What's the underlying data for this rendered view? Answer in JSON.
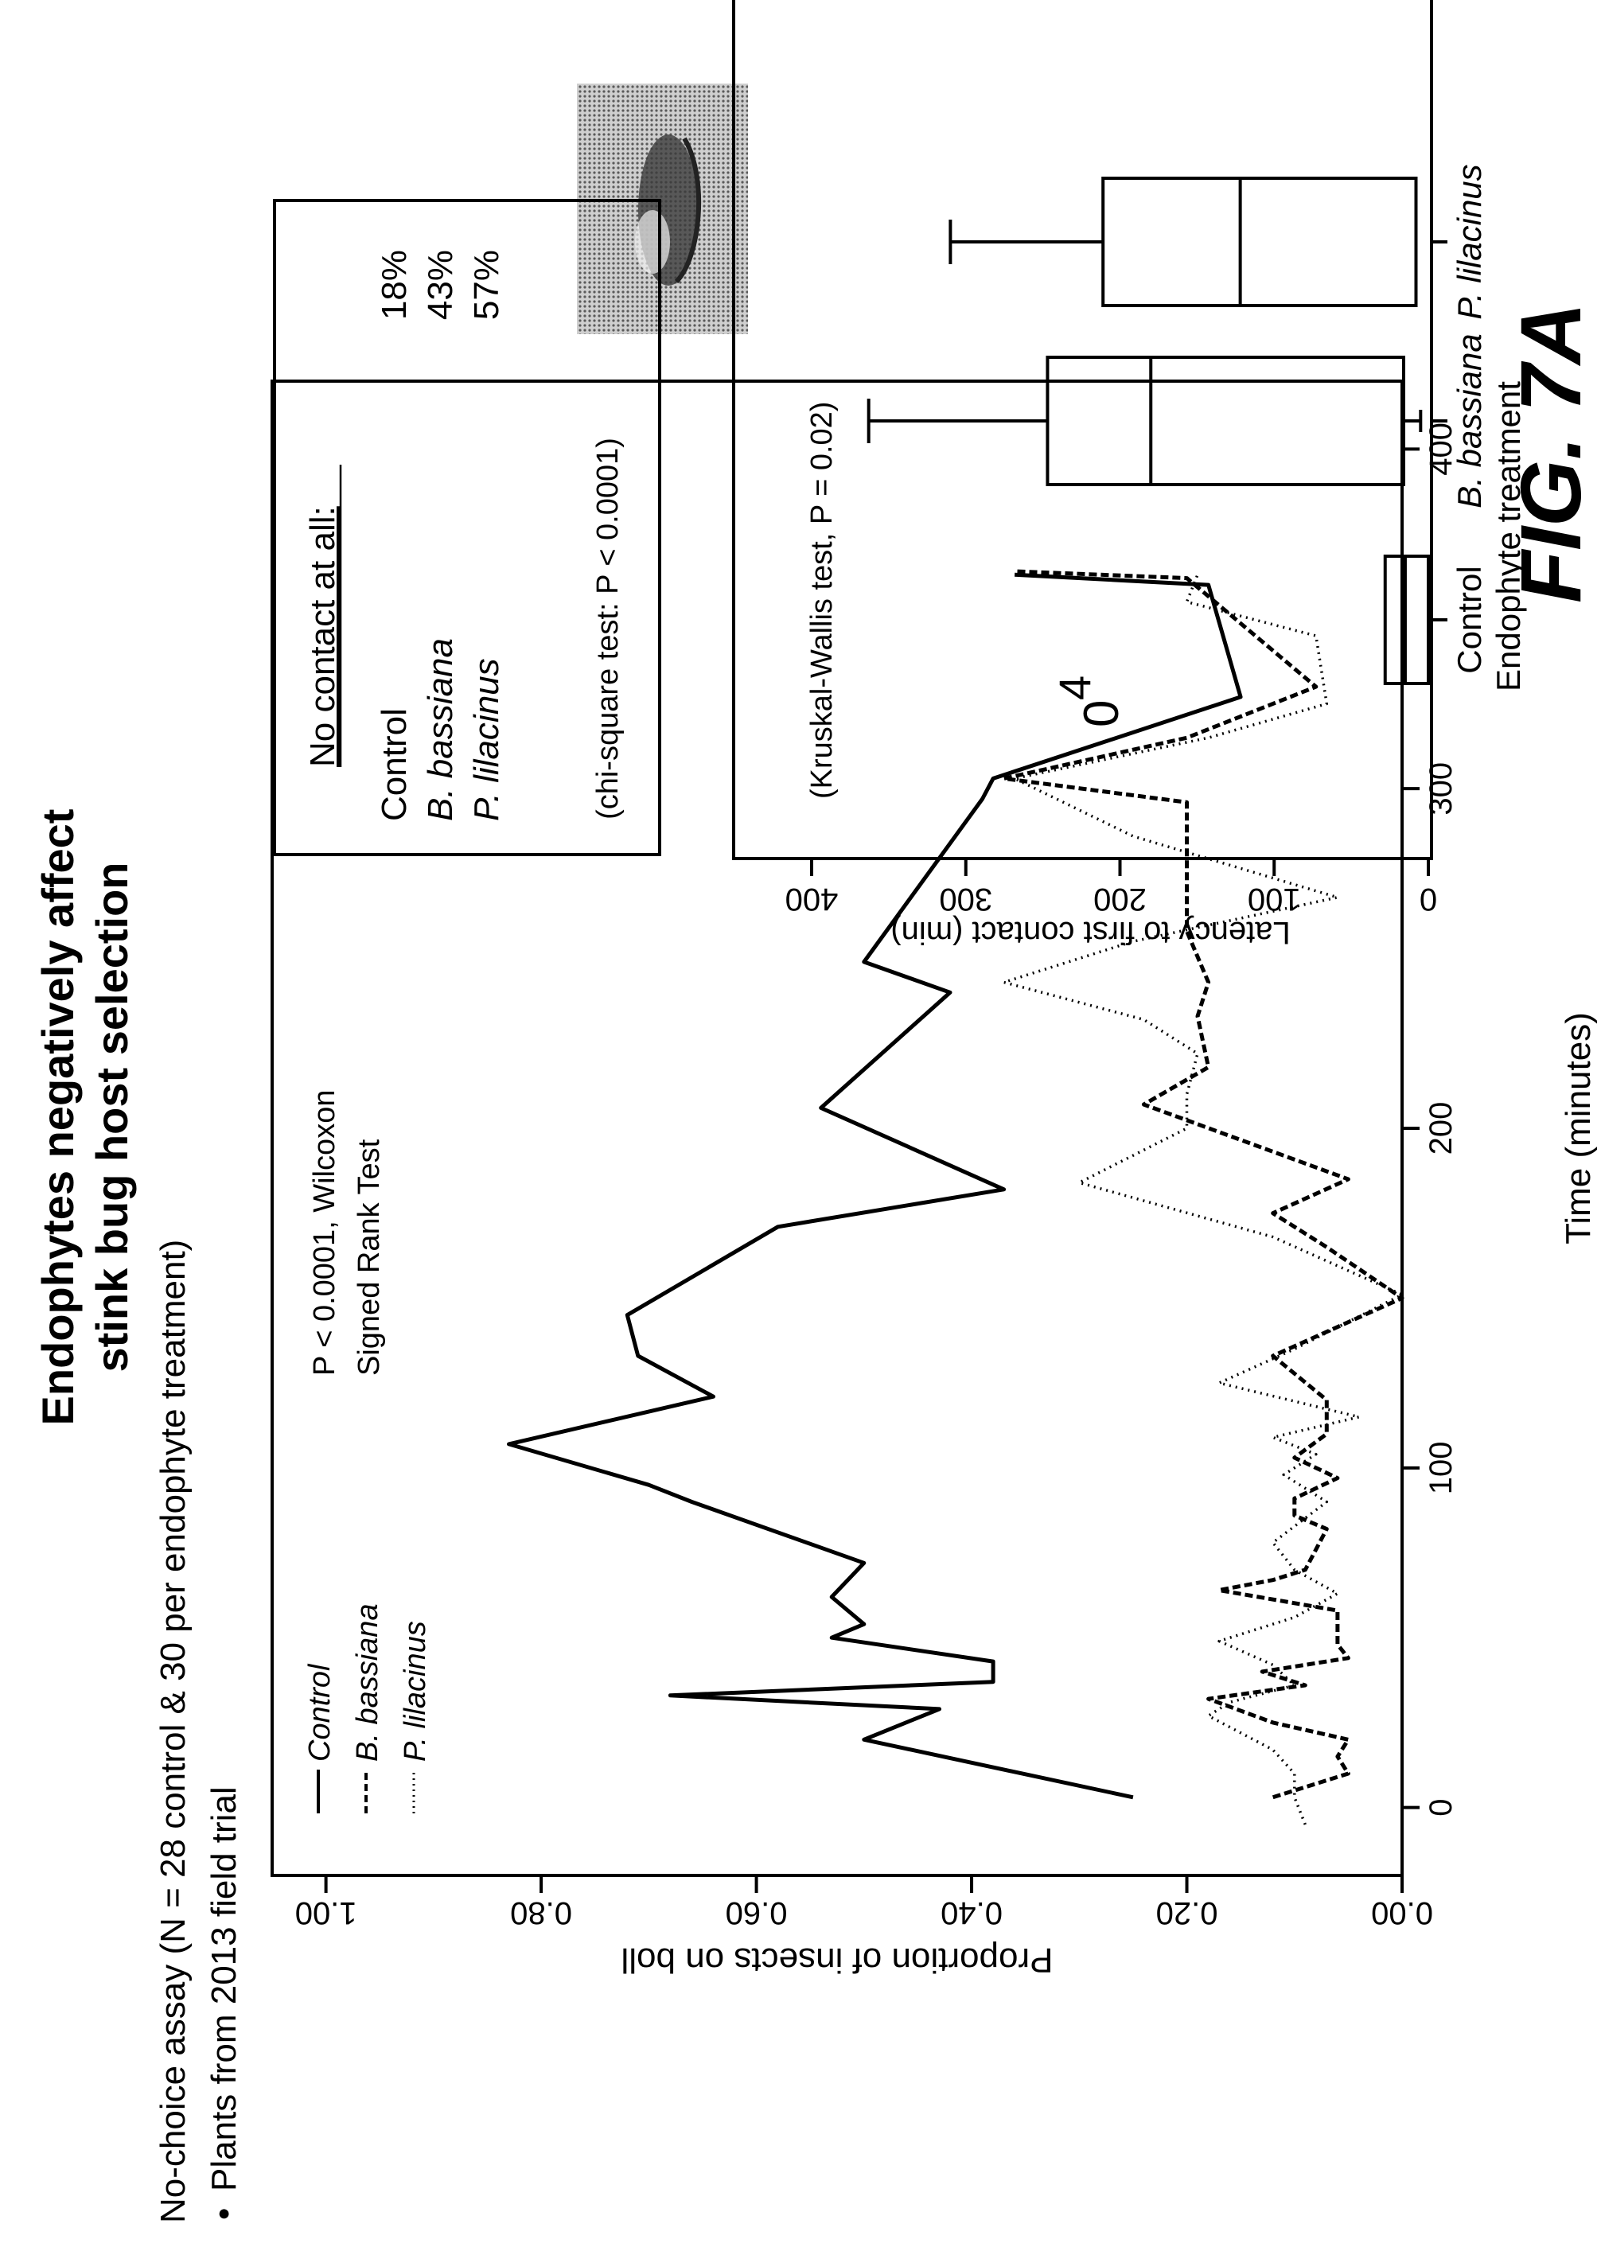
{
  "header": {
    "title_line1": "Endophytes negatively affect",
    "title_line2": "stink bug host selection",
    "subtitle_line1": "No-choice assay (N = 28 control & 30 per endophyte treatment)",
    "subtitle_line2": "Plants from 2013 field trial",
    "bullet": "•"
  },
  "figure_label": "FIG. 7A",
  "no_contact_box": {
    "heading": "No contact at all:",
    "rows": [
      {
        "label": "Control",
        "value": "18%"
      },
      {
        "label": "B. bassiana",
        "value": "43%"
      },
      {
        "label": "P. lilacinus",
        "value": "57%"
      }
    ],
    "test": "(chi-square test:  P < 0.0001)"
  },
  "photo": {
    "description_icon": "stink-bug-photo"
  },
  "chart_data": [
    {
      "type": "line",
      "xlabel": "Time (minutes)",
      "ylabel": "Proportion of insects on boll",
      "xlim": [
        -20,
        420
      ],
      "ylim": [
        0,
        1.05
      ],
      "xticks": [
        "0",
        "100",
        "200",
        "300",
        "400"
      ],
      "xtick_values": [
        0,
        100,
        200,
        300,
        400
      ],
      "yticks": [
        "0.00",
        "0.20",
        "0.40",
        "0.60",
        "0.80",
        "1.00"
      ],
      "ytick_values": [
        0,
        0.2,
        0.4,
        0.6,
        0.8,
        1.0
      ],
      "legend": [
        "Control",
        "B. bassiana",
        "P. lilacinus"
      ],
      "annotation_line1": "P < 0.0001, Wilcoxon",
      "annotation_line2": "Signed Rank Test",
      "series": [
        {
          "name": "Control",
          "style": "solid",
          "x": [
            3,
            20,
            29,
            33,
            37,
            43,
            50,
            54,
            62,
            72,
            90,
            95,
            107,
            121,
            133,
            145,
            171,
            182,
            206,
            240,
            249,
            297,
            303,
            327,
            360,
            363
          ],
          "y": [
            0.25,
            0.5,
            0.43,
            0.68,
            0.38,
            0.38,
            0.53,
            0.5,
            0.53,
            0.5,
            0.66,
            0.7,
            0.83,
            0.64,
            0.71,
            0.72,
            0.58,
            0.37,
            0.54,
            0.42,
            0.5,
            0.39,
            0.38,
            0.15,
            0.18,
            0.36
          ]
        },
        {
          "name": "B. bassiana",
          "style": "dashed",
          "x": [
            3,
            10,
            15,
            20,
            25,
            32,
            36,
            40,
            44,
            48,
            53,
            58,
            64,
            67,
            70,
            76,
            82,
            86,
            91,
            97,
            103,
            110,
            120,
            133,
            150,
            165,
            175,
            185,
            207,
            218,
            233,
            243,
            258,
            296,
            303,
            315,
            330,
            362,
            364
          ],
          "y": [
            0.12,
            0.05,
            0.06,
            0.05,
            0.12,
            0.18,
            0.09,
            0.13,
            0.05,
            0.06,
            0.06,
            0.06,
            0.17,
            0.12,
            0.09,
            0.08,
            0.07,
            0.1,
            0.1,
            0.06,
            0.1,
            0.07,
            0.07,
            0.12,
            0.0,
            0.07,
            0.12,
            0.05,
            0.24,
            0.18,
            0.19,
            0.18,
            0.2,
            0.2,
            0.37,
            0.2,
            0.08,
            0.2,
            0.36
          ]
        },
        {
          "name": "P. lilacinus",
          "style": "dotted",
          "x": [
            -5,
            3,
            10,
            17,
            27,
            31,
            36,
            42,
            49,
            56,
            63,
            70,
            78,
            90,
            98,
            104,
            109,
            115,
            125,
            135,
            151,
            168,
            184,
            200,
            210,
            222,
            232,
            243,
            255,
            268,
            286,
            303,
            315,
            325,
            345,
            355,
            363
          ],
          "y": [
            0.09,
            0.1,
            0.1,
            0.12,
            0.18,
            0.16,
            0.1,
            0.12,
            0.17,
            0.1,
            0.06,
            0.1,
            0.12,
            0.07,
            0.11,
            0.08,
            0.12,
            0.04,
            0.17,
            0.1,
            0.0,
            0.12,
            0.3,
            0.2,
            0.2,
            0.19,
            0.24,
            0.37,
            0.25,
            0.06,
            0.25,
            0.36,
            0.18,
            0.07,
            0.08,
            0.2,
            0.19
          ]
        }
      ]
    },
    {
      "type": "box",
      "xlabel": "Endophyte treatment",
      "ylabel": "Latency to first contact (min)",
      "ylim": [
        0,
        420
      ],
      "yticks": [
        "0",
        "100",
        "200",
        "300",
        "400"
      ],
      "ytick_values": [
        0,
        100,
        200,
        300,
        400
      ],
      "annotation": "(Kruskal-Wallis test,  P = 0.02)",
      "categories": [
        "Control",
        "B. bassiana",
        "P. lilacinus"
      ],
      "boxes": [
        {
          "q1": 0,
          "median": 15,
          "q3": 28,
          "whisker_low": 0,
          "whisker_high": 28
        },
        {
          "q1": 16,
          "median": 180,
          "q3": 247,
          "whisker_low": 5,
          "whisker_high": 363
        },
        {
          "q1": 8,
          "median": 122,
          "q3": 211,
          "whisker_low": 8,
          "whisker_high": 310
        }
      ],
      "outlier_label": "0",
      "outlier_superscript": "4"
    }
  ]
}
